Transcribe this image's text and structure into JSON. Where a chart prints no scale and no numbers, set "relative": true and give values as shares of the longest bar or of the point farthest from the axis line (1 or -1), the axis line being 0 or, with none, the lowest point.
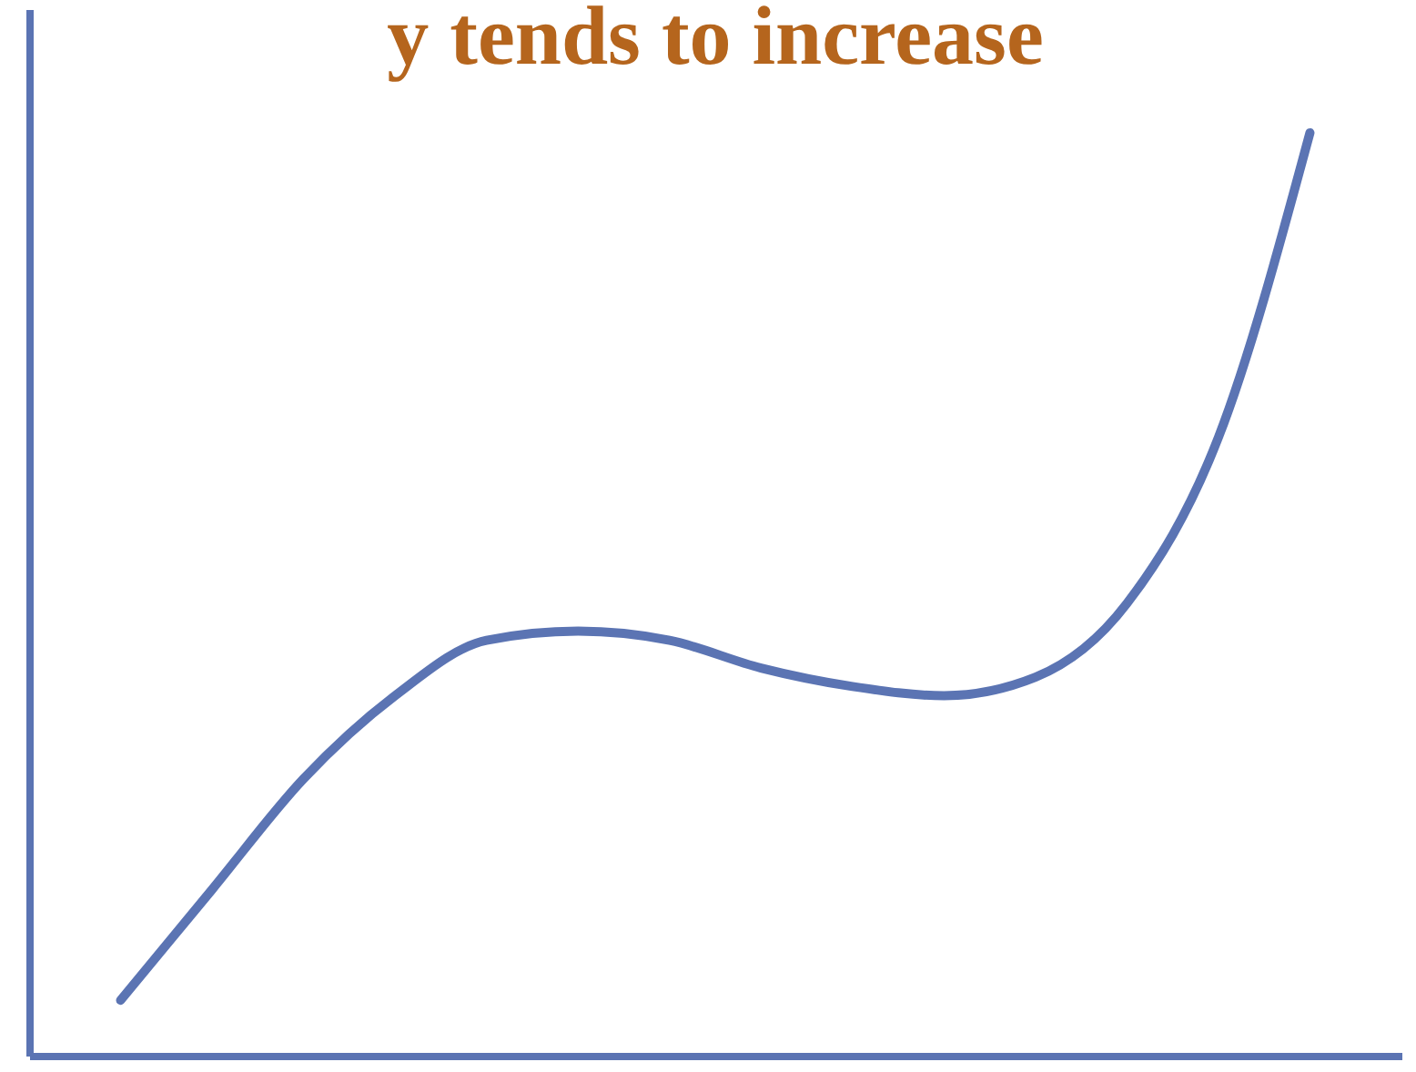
{
  "chart_data": {
    "type": "line",
    "title": "y tends to increase",
    "relative": true,
    "marker": "none",
    "line_style": "solid",
    "grid": false,
    "categories": [
      null,
      null,
      null,
      null,
      null,
      null,
      null,
      null,
      null,
      null,
      null,
      null,
      null,
      null
    ],
    "series": [
      {
        "color": "#5b74b3",
        "values": [
          0.06,
          0.18,
          0.3,
          0.39,
          0.45,
          0.46,
          0.45,
          0.42,
          0.4,
          0.39,
          0.41,
          0.49,
          0.67,
          1
        ]
      }
    ]
  }
}
